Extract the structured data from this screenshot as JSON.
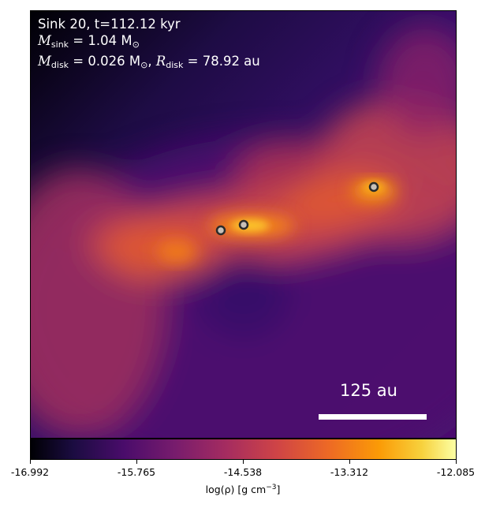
{
  "info": {
    "line1": "Sink 20, t=112.12 kyr",
    "msink_symbol": "M",
    "msink_sub": "sink",
    "msink_value": " = 1.04 M",
    "msink_unit_sub": "⊙",
    "mdisk_symbol": "M",
    "mdisk_sub": "disk",
    "mdisk_value": " = 0.026 M",
    "mdisk_unit_sub": "⊙",
    "rdisk_symbol": "R",
    "rdisk_sub": "disk",
    "rdisk_value": " = 78.92 au"
  },
  "scale_bar": {
    "label": "125 au"
  },
  "sinks_count_shown": 3,
  "colorbar": {
    "colormap": "inferno",
    "ticks": [
      "-16.992",
      "-15.765",
      "-14.538",
      "-13.312",
      "-12.085"
    ],
    "label_main": "log(ρ) [g cm",
    "label_sup": "−3",
    "label_end": "]"
  }
}
